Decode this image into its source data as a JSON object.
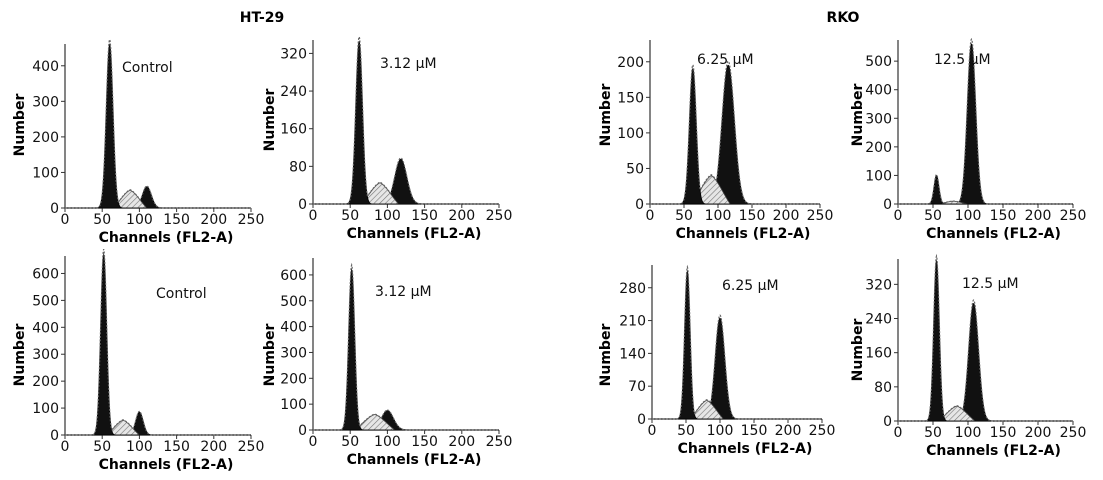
{
  "groups": [
    {
      "title": "HT-29"
    },
    {
      "title": "RKO"
    }
  ],
  "chart_data": [
    {
      "type": "area",
      "group": "HT-29",
      "condition": "Control",
      "xlabel": "Channels (FL2-A)",
      "ylabel": "Number",
      "xlim": [
        0,
        250
      ],
      "ylim": [
        0,
        450
      ],
      "xticks": [
        0,
        50,
        100,
        150,
        200,
        250
      ],
      "yticks": [
        0,
        100,
        200,
        300,
        400
      ],
      "g1_peak": {
        "center": 60,
        "height": 460,
        "width": 4.5
      },
      "s_phase": {
        "from": 65,
        "to": 110,
        "height": 50
      },
      "g2_peak": {
        "center": 110,
        "height": 60,
        "width": 6
      }
    },
    {
      "type": "area",
      "group": "HT-29",
      "condition": "3.12 μM",
      "xlabel": "Channels (FL2-A)",
      "ylabel": "Number",
      "xlim": [
        0,
        250
      ],
      "ylim": [
        0,
        340
      ],
      "xticks": [
        0,
        50,
        100,
        150,
        200,
        250
      ],
      "yticks": [
        0,
        80,
        160,
        240,
        320
      ],
      "g1_peak": {
        "center": 62,
        "height": 345,
        "width": 4.5
      },
      "s_phase": {
        "from": 65,
        "to": 115,
        "height": 45
      },
      "g2_peak": {
        "center": 118,
        "height": 95,
        "width": 8
      }
    },
    {
      "type": "area",
      "group": "HT-29",
      "condition": "6.25 μM",
      "xlabel": "Channels (FL2-A)",
      "ylabel": "Number",
      "xlim": [
        0,
        250
      ],
      "ylim": [
        0,
        225
      ],
      "xticks": [
        0,
        50,
        100,
        150,
        200,
        250
      ],
      "yticks": [
        0,
        50,
        100,
        150,
        200
      ],
      "g1_peak": {
        "center": 63,
        "height": 190,
        "width": 5
      },
      "s_phase": {
        "from": 62,
        "to": 118,
        "height": 40
      },
      "g2_peak": {
        "center": 115,
        "height": 195,
        "width": 9
      }
    },
    {
      "type": "area",
      "group": "HT-29",
      "condition": "12.5 μM",
      "xlabel": "Channels (FL2-A)",
      "ylabel": "Number",
      "xlim": [
        0,
        250
      ],
      "ylim": [
        0,
        560
      ],
      "xticks": [
        0,
        50,
        100,
        150,
        200,
        250
      ],
      "yticks": [
        0,
        100,
        200,
        300,
        400,
        500
      ],
      "g1_peak": {
        "center": 55,
        "height": 100,
        "width": 3.5
      },
      "s_phase": {
        "from": 58,
        "to": 100,
        "height": 10
      },
      "g2_peak": {
        "center": 105,
        "height": 560,
        "width": 6
      }
    },
    {
      "type": "area",
      "group": "RKO",
      "condition": "Control",
      "xlabel": "Channels (FL2-A)",
      "ylabel": "Number",
      "xlim": [
        0,
        250
      ],
      "ylim": [
        0,
        650
      ],
      "xticks": [
        0,
        50,
        100,
        150,
        200,
        250
      ],
      "yticks": [
        0,
        100,
        200,
        300,
        400,
        500,
        600
      ],
      "g1_peak": {
        "center": 52,
        "height": 670,
        "width": 4
      },
      "s_phase": {
        "from": 56,
        "to": 100,
        "height": 55
      },
      "g2_peak": {
        "center": 100,
        "height": 85,
        "width": 5
      }
    },
    {
      "type": "area",
      "group": "RKO",
      "condition": "3.12 μM",
      "xlabel": "Channels (FL2-A)",
      "ylabel": "Number",
      "xlim": [
        0,
        250
      ],
      "ylim": [
        0,
        650
      ],
      "xticks": [
        0,
        50,
        100,
        150,
        200,
        250
      ],
      "yticks": [
        0,
        100,
        200,
        300,
        400,
        500,
        600
      ],
      "g1_peak": {
        "center": 52,
        "height": 620,
        "width": 4
      },
      "s_phase": {
        "from": 56,
        "to": 110,
        "height": 60
      },
      "g2_peak": {
        "center": 100,
        "height": 75,
        "width": 8
      }
    },
    {
      "type": "area",
      "group": "RKO",
      "condition": "6.25 μM",
      "xlabel": "Channels (FL2-A)",
      "ylabel": "Number",
      "xlim": [
        0,
        250
      ],
      "ylim": [
        0,
        320
      ],
      "xticks": [
        0,
        50,
        100,
        150,
        200,
        250
      ],
      "yticks": [
        0,
        70,
        140,
        210,
        280
      ],
      "g1_peak": {
        "center": 52,
        "height": 315,
        "width": 4
      },
      "s_phase": {
        "from": 56,
        "to": 105,
        "height": 40
      },
      "g2_peak": {
        "center": 100,
        "height": 215,
        "width": 7
      }
    },
    {
      "type": "area",
      "group": "RKO",
      "condition": "12.5 μM",
      "xlabel": "Channels (FL2-A)",
      "ylabel": "Number",
      "xlim": [
        0,
        250
      ],
      "ylim": [
        0,
        370
      ],
      "xticks": [
        0,
        50,
        100,
        150,
        200,
        250
      ],
      "yticks": [
        0,
        80,
        160,
        240,
        320
      ],
      "g1_peak": {
        "center": 55,
        "height": 375,
        "width": 4
      },
      "s_phase": {
        "from": 58,
        "to": 110,
        "height": 35
      },
      "g2_peak": {
        "center": 108,
        "height": 275,
        "width": 7
      }
    }
  ]
}
